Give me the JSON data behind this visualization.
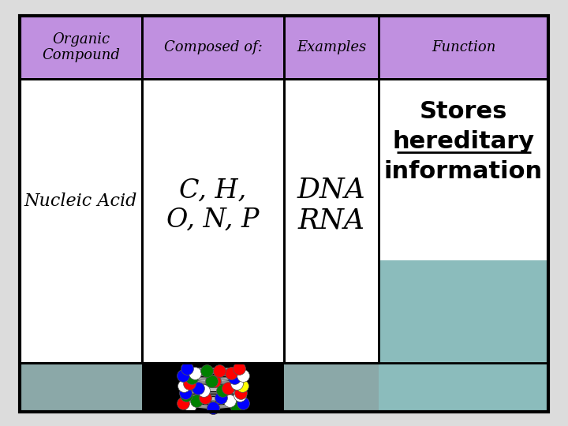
{
  "bg_color": "#dcdcdc",
  "header_bg": "#c090e0",
  "cell_bg": "#ffffff",
  "image_area_right_bg": "#8bbcbc",
  "image_area_mid_bg": "#000000",
  "border_color": "#000000",
  "header_row": [
    "Organic\nCompound",
    "Composed of:",
    "Examples",
    "Function"
  ],
  "col1_label": "Nucleic Acid",
  "col2_text": "C, H,\nO, N, P",
  "col3_text": "DNA\nRNA",
  "col4_text_line1": "Stores",
  "col4_text_line2": "hereditary",
  "col4_text_line3": "information",
  "header_fontsize": 13,
  "body_fontsize": 18,
  "function_fontsize": 22,
  "purple_color": "#c090e0",
  "teal_color": "#8bbcbc",
  "bottom_bar_color": "#8ba8a8"
}
